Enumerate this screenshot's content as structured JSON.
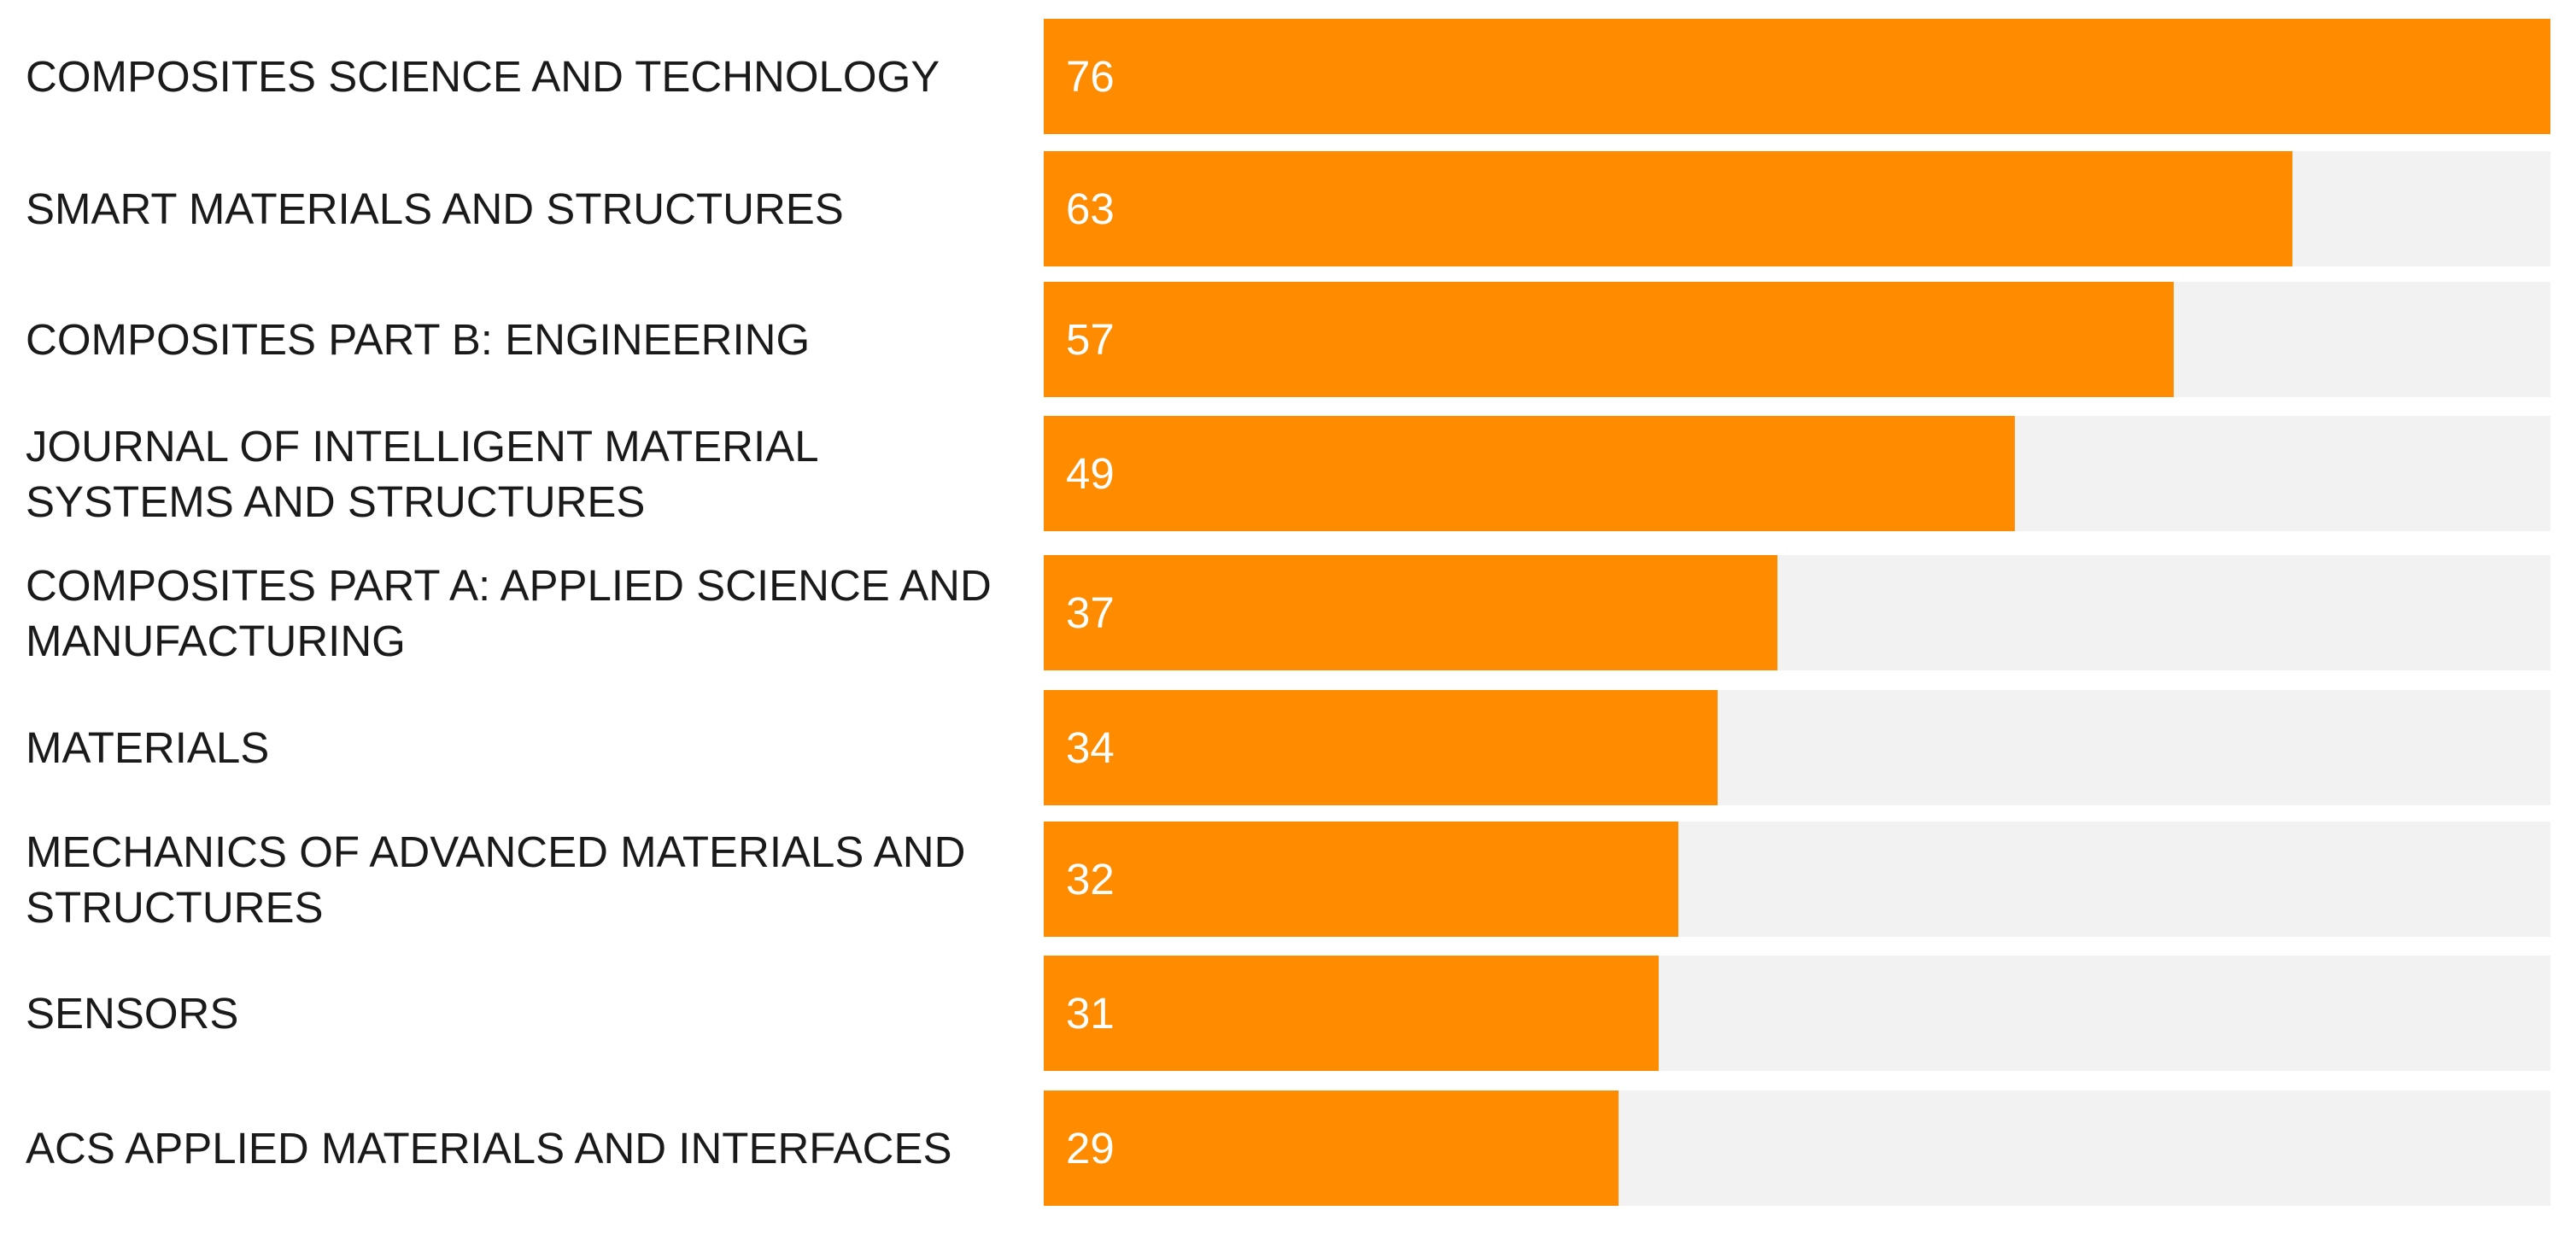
{
  "chart_data": {
    "type": "bar",
    "orientation": "horizontal",
    "title": "",
    "xlabel": "",
    "ylabel": "",
    "xlim": [
      0,
      76
    ],
    "categories": [
      "COMPOSITES SCIENCE AND TECHNOLOGY",
      "SMART MATERIALS AND STRUCTURES",
      "COMPOSITES PART B: ENGINEERING",
      "JOURNAL OF INTELLIGENT MATERIAL SYSTEMS AND STRUCTURES",
      "COMPOSITES PART A: APPLIED SCIENCE AND MANUFACTURING",
      "MATERIALS",
      "MECHANICS OF ADVANCED MATERIALS AND STRUCTURES",
      "SENSORS",
      "ACS APPLIED MATERIALS AND INTERFACES"
    ],
    "values": [
      76,
      63,
      57,
      49,
      37,
      34,
      32,
      31,
      29
    ],
    "bar_color": "#ff8c00",
    "track_color": "#f2f2f2",
    "value_label_color": "#ffffff"
  }
}
